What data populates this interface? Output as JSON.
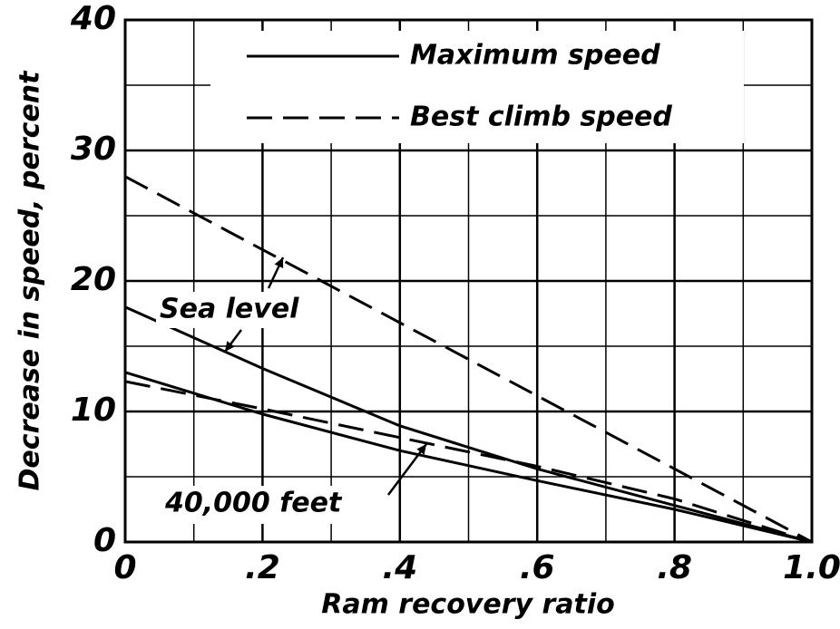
{
  "chart_data": {
    "type": "line",
    "xlabel": "Ram recovery ratio",
    "ylabel": "Decrease in speed, percent",
    "x": [
      0,
      0.2,
      0.4,
      0.6,
      0.8,
      1.0
    ],
    "series": [
      {
        "name": "Maximum speed",
        "color": "#000000",
        "dash": "solid",
        "values": [
          18,
          13.3,
          8.9,
          5.6,
          2.8,
          0
        ]
      },
      {
        "name": "Best climb speed",
        "color": "#000000",
        "dash": "dashed",
        "values": [
          28,
          22.4,
          16.8,
          11.2,
          5.6,
          0
        ]
      },
      {
        "name": "Maximum speed",
        "color": "#000000",
        "dash": "solid",
        "values": [
          13,
          9.8,
          7,
          4.7,
          2.5,
          0
        ]
      },
      {
        "name": "Best climb speed",
        "color": "#000000",
        "dash": "dashed",
        "values": [
          12.3,
          10.2,
          8,
          5.8,
          3.3,
          0
        ]
      }
    ],
    "legend_entries": [
      0,
      1
    ],
    "annotations": [
      "Sea level",
      "40,000 feet"
    ],
    "xlim": [
      0,
      1
    ],
    "ylim": [
      0,
      40
    ],
    "xticks": [
      0,
      {
        "value": 0.2,
        "label": ".2"
      },
      {
        "value": 0.4,
        "label": ".4"
      },
      {
        "value": 0.6,
        "label": ".6"
      },
      {
        "value": 0.8,
        "label": ".8"
      },
      {
        "value": 1,
        "label": "1.0"
      }
    ],
    "yticks": [
      0,
      10,
      20,
      30,
      40
    ],
    "x_minor_grid": [
      0.1,
      0.3,
      0.5,
      0.7,
      0.9
    ],
    "y_minor_grid": [
      5,
      15,
      25,
      35
    ],
    "grid": true,
    "legend": "upper right"
  }
}
